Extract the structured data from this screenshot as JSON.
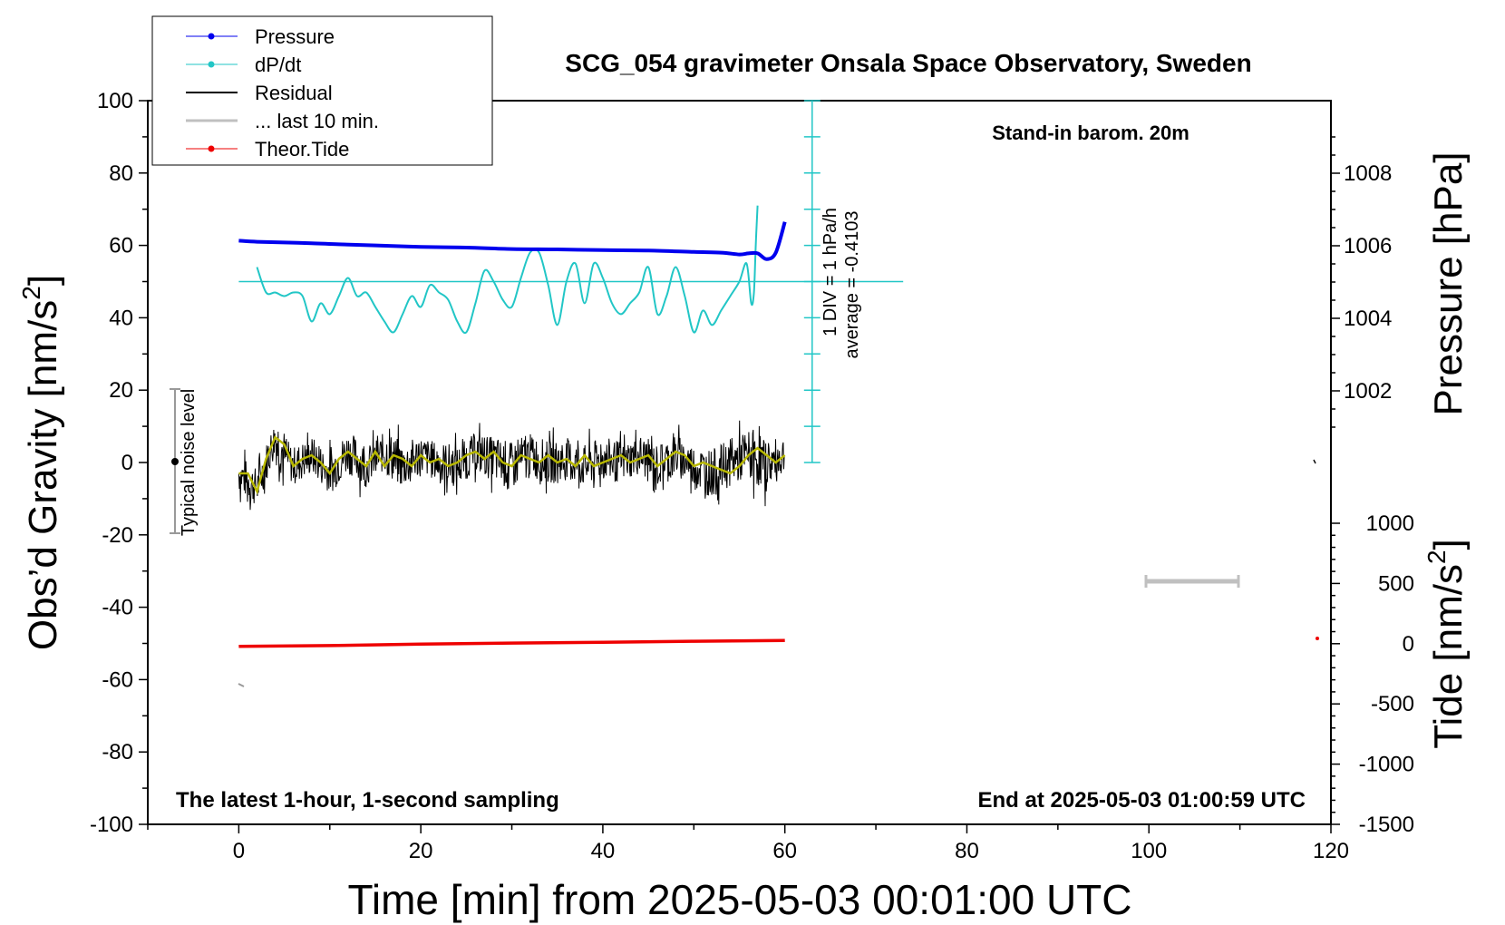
{
  "chart_data": {
    "type": "line",
    "title": "SCG_054 gravimeter Onsala Space Observatory, Sweden",
    "xlabel": "Time [min] from 2025-05-03 00:01:00 UTC",
    "ylabel_left_main": "Obs’d Gravity [nm/s",
    "ylabel_left_sup": "2",
    "ylabel_left_end": "]",
    "ylabel_right_pressure": "Pressure [hPa]",
    "ylabel_right_tide_main": "Tide [nm/s",
    "ylabel_right_tide_sup": "2",
    "ylabel_right_tide_end": "]",
    "xlim": [
      -10,
      120
    ],
    "ylim": [
      -100,
      100
    ],
    "pressure_lim": [
      1999.0,
      2009.6
    ],
    "tide_lim": [
      -1500,
      1000
    ],
    "x_ticks": [
      0,
      20,
      40,
      60,
      80,
      100,
      120
    ],
    "x_tick_labels": [
      "0",
      "20",
      "40",
      "60",
      "80",
      "100",
      "120"
    ],
    "y_ticks": [
      100,
      80,
      60,
      40,
      20,
      0,
      -20,
      -40,
      -60,
      -80,
      -100
    ],
    "y_tick_labels": [
      "100",
      "80",
      "60",
      "40",
      "20",
      "0",
      "-20",
      "-40",
      "-60",
      "-80",
      "-100"
    ],
    "pressure_ticks": [
      1008,
      1006,
      1004,
      1002
    ],
    "pressure_tick_labels": [
      "1008",
      "1006",
      "1004",
      "1002"
    ],
    "tide_ticks": [
      1000,
      500,
      0,
      -500,
      -1000,
      -1500
    ],
    "tide_tick_labels": [
      "1000",
      "500",
      "0",
      "-500",
      "-1000",
      "-1500"
    ],
    "legend_position": "top-left",
    "legend": [
      {
        "label": "Pressure",
        "color": "#0000ee",
        "marker": true
      },
      {
        "label": "dP/dt",
        "color": "#22c6c6",
        "marker": true
      },
      {
        "label": "Residual",
        "color": "#000000",
        "marker": false
      },
      {
        "label": "... last 10 min.",
        "color": "#c0c0c0",
        "marker": false
      },
      {
        "label": "Theor.Tide",
        "color": "#ee0000",
        "marker": true
      }
    ],
    "annotations": {
      "barometer": "Stand-in barom. 20m",
      "sampling": "The latest 1-hour, 1-second sampling",
      "end_time": "End at 2025-05-03 01:00:59 UTC",
      "noise": "Typical noise level",
      "div_scale": "1 DIV = 1 hPa/h",
      "average": "average = -0.4103"
    },
    "series": [
      {
        "name": "Pressure",
        "color": "#0000ee",
        "axis": "gravity",
        "x": [
          0,
          2,
          5,
          8,
          11,
          15,
          20,
          25,
          30,
          35,
          40,
          45,
          50,
          53,
          55,
          56,
          57,
          58,
          59,
          60
        ],
        "y": [
          61.3,
          61.0,
          60.8,
          60.6,
          60.3,
          60.0,
          59.6,
          59.4,
          59.0,
          58.9,
          58.7,
          58.6,
          58.2,
          58.0,
          57.5,
          57.8,
          57.8,
          56.2,
          58.0,
          66.5
        ]
      },
      {
        "name": "dP/dt",
        "color": "#22c6c6",
        "axis": "gravity",
        "x": [
          2,
          3,
          4,
          5,
          6,
          7,
          8,
          9,
          10,
          11,
          12,
          13,
          14,
          15,
          16,
          17,
          18,
          19,
          20,
          21,
          22,
          23,
          24,
          25,
          26,
          27,
          28,
          29,
          30,
          31,
          32,
          33,
          34,
          35,
          36,
          37,
          38,
          39,
          40,
          41,
          42,
          43,
          44,
          45,
          46,
          47,
          48,
          49,
          50,
          51,
          52,
          53,
          54,
          55,
          55.8,
          56.3,
          56.6,
          56.8,
          57.0
        ],
        "y": [
          54,
          47,
          47,
          46,
          47,
          46,
          39,
          44,
          41,
          46,
          51,
          46,
          47,
          43,
          39,
          36,
          41,
          46,
          43,
          49,
          47,
          45,
          39,
          36,
          44,
          53,
          50,
          45,
          43,
          51,
          58,
          58,
          49,
          38,
          50,
          55,
          44,
          55,
          51,
          44,
          41,
          44,
          47,
          54,
          41,
          46,
          54,
          46,
          36,
          42,
          38,
          42,
          46,
          50,
          55,
          44,
          47,
          60,
          71
        ]
      },
      {
        "name": "Residual",
        "color": "#000000",
        "axis": "gravity",
        "x": [
          0,
          2,
          4,
          5,
          6,
          8,
          10,
          12,
          14,
          16,
          18,
          20,
          22,
          24,
          26,
          28,
          30,
          32,
          34,
          36,
          38,
          40,
          42,
          44,
          46,
          48,
          50,
          52,
          54,
          56,
          58,
          60
        ],
        "y": [
          -3,
          -7,
          7,
          2,
          -1,
          2,
          -3,
          3,
          -1,
          3,
          -1,
          2,
          0,
          -1,
          3,
          1,
          -1,
          2,
          0,
          1,
          -1,
          1,
          0,
          2,
          -1,
          2,
          -1,
          -3,
          0,
          2,
          -1,
          2
        ],
        "band": [
          9,
          9,
          12,
          9,
          9,
          9,
          10,
          10,
          9,
          11,
          10,
          9,
          10,
          9,
          10,
          11,
          11,
          10,
          10,
          10,
          10,
          10,
          9,
          10,
          10,
          10,
          11,
          11,
          11,
          12,
          10,
          8
        ]
      },
      {
        "name": "Residual smoothed",
        "color": "#b8b800",
        "axis": "gravity",
        "x": [
          0,
          1,
          2,
          3,
          4,
          5,
          6,
          7,
          8,
          9,
          10,
          11,
          12,
          13,
          14,
          15,
          16,
          17,
          18,
          19,
          20,
          21,
          22,
          23,
          24,
          25,
          26,
          27,
          28,
          29,
          30,
          31,
          32,
          33,
          34,
          35,
          36,
          37,
          38,
          39,
          40,
          41,
          42,
          43,
          44,
          45,
          46,
          47,
          48,
          49,
          50,
          51,
          52,
          53,
          54,
          55,
          56,
          57,
          58,
          59,
          60
        ],
        "y": [
          -3,
          -3,
          -8,
          1,
          7,
          5,
          -1,
          1,
          2,
          0,
          -3,
          1,
          3,
          1,
          -1,
          3,
          -1,
          2,
          1,
          -1,
          2,
          0,
          1,
          -1,
          0,
          2,
          3,
          1,
          3,
          0,
          -1,
          2,
          1,
          0,
          2,
          0,
          1,
          -1,
          2,
          -1,
          0,
          1,
          2,
          0,
          1,
          2,
          -1,
          1,
          3,
          2,
          -1,
          0,
          -1,
          -2,
          -3,
          -1,
          2,
          4,
          2,
          0,
          2
        ]
      },
      {
        "name": "Theor.Tide",
        "color": "#ee0000",
        "axis": "gravity",
        "x": [
          0,
          10,
          20,
          30,
          40,
          50,
          60
        ],
        "y": [
          -50.8,
          -50.6,
          -50.2,
          -49.9,
          -49.7,
          -49.4,
          -49.2
        ]
      }
    ]
  }
}
